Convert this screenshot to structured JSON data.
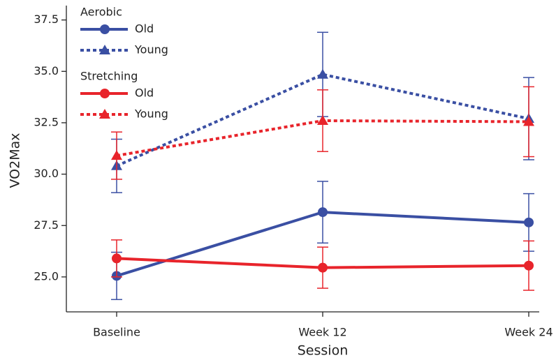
{
  "chart_data": {
    "type": "line",
    "x_label": "Session",
    "y_label": "VO2Max",
    "categories": [
      "Baseline",
      "Week 12",
      "Week 24"
    ],
    "ylim": [
      23.3,
      38.2
    ],
    "yticks": [
      {
        "value": 25,
        "label": "25.0"
      },
      27.5,
      {
        "value": 30,
        "label": "30.0"
      },
      32.5,
      {
        "value": 35,
        "label": "35.0"
      },
      37.5
    ],
    "series": [
      {
        "group": "Aerobic",
        "name": "Old",
        "color": "#3a4fa3",
        "dash": "solid",
        "marker": "circle",
        "values": [
          25.05,
          28.15,
          27.65
        ],
        "errors": [
          1.15,
          1.5,
          1.4
        ]
      },
      {
        "group": "Aerobic",
        "name": "Young",
        "color": "#3a4fa3",
        "dash": "dotted",
        "marker": "triangle",
        "values": [
          30.4,
          34.85,
          32.7
        ],
        "errors": [
          1.3,
          2.05,
          2.0
        ]
      },
      {
        "group": "Stretching",
        "name": "Old",
        "color": "#e8242b",
        "dash": "solid",
        "marker": "circle",
        "values": [
          25.9,
          25.45,
          25.55
        ],
        "errors": [
          0.9,
          1.0,
          1.2
        ]
      },
      {
        "group": "Stretching",
        "name": "Young",
        "color": "#e8242b",
        "dash": "dotted",
        "marker": "triangle",
        "values": [
          30.9,
          32.6,
          32.55
        ],
        "errors": [
          1.15,
          1.5,
          1.7
        ]
      }
    ]
  }
}
